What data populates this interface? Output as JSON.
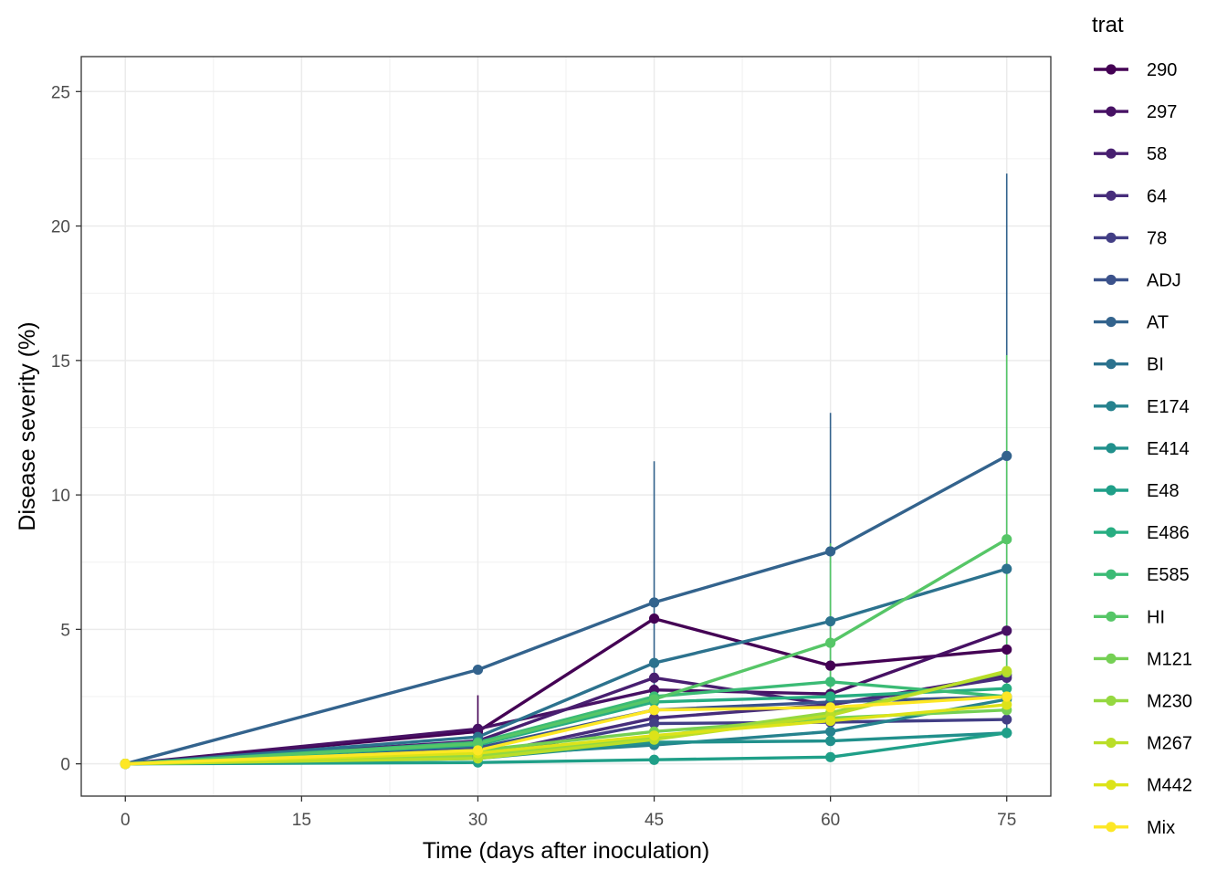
{
  "chart_data": {
    "type": "line",
    "title": "",
    "xlabel": "Time (days after inoculation)",
    "ylabel": "Disease severity (%)",
    "xlim": [
      -3.75,
      78.75
    ],
    "ylim": [
      -1.2,
      26.3
    ],
    "x_ticks": [
      0,
      15,
      30,
      45,
      60,
      75
    ],
    "y_ticks": [
      0,
      5,
      10,
      15,
      20,
      25
    ],
    "x": [
      0,
      30,
      45,
      60,
      75
    ],
    "grid": true,
    "legend_position": "right",
    "legend_title": "trat",
    "series": [
      {
        "name": "290",
        "color": "#440154",
        "values": [
          0,
          1.2,
          5.4,
          3.65,
          4.25
        ],
        "error_high": [
          null,
          2.55,
          null,
          null,
          null
        ]
      },
      {
        "name": "297",
        "color": "#471164",
        "values": [
          0,
          1.3,
          2.75,
          2.6,
          4.95
        ],
        "error_high": [
          null,
          null,
          null,
          null,
          null
        ]
      },
      {
        "name": "58",
        "color": "#481F70",
        "values": [
          0,
          0.85,
          3.2,
          2.2,
          3.3
        ],
        "error_high": [
          null,
          null,
          null,
          null,
          null
        ]
      },
      {
        "name": "64",
        "color": "#472D7B",
        "values": [
          0,
          0.3,
          1.7,
          2.2,
          3.2
        ],
        "error_high": [
          null,
          null,
          null,
          null,
          null
        ]
      },
      {
        "name": "78",
        "color": "#423E85",
        "values": [
          0,
          0.25,
          1.5,
          1.55,
          1.65
        ],
        "error_high": [
          null,
          null,
          null,
          null,
          null
        ]
      },
      {
        "name": "ADJ",
        "color": "#3B528B",
        "values": [
          0,
          0.6,
          2.0,
          2.3,
          2.5
        ],
        "error_high": [
          null,
          null,
          null,
          null,
          null
        ]
      },
      {
        "name": "AT",
        "color": "#33638D",
        "values": [
          0,
          3.5,
          6.0,
          7.9,
          11.45
        ],
        "error_high": [
          null,
          null,
          11.25,
          13.05,
          21.95
        ]
      },
      {
        "name": "BI",
        "color": "#2C728E",
        "values": [
          0,
          1.0,
          3.75,
          5.3,
          7.25
        ],
        "error_high": [
          null,
          null,
          null,
          null,
          null
        ]
      },
      {
        "name": "E174",
        "color": "#26828E",
        "values": [
          0,
          0.3,
          0.7,
          1.2,
          2.4
        ],
        "error_high": [
          null,
          null,
          null,
          null,
          null
        ]
      },
      {
        "name": "E414",
        "color": "#21908C",
        "values": [
          0,
          0.2,
          0.8,
          0.85,
          1.15
        ],
        "error_high": [
          null,
          null,
          null,
          null,
          null
        ]
      },
      {
        "name": "E48",
        "color": "#1F9F88",
        "values": [
          0,
          0.05,
          0.15,
          0.25,
          1.15
        ],
        "error_high": [
          null,
          null,
          null,
          null,
          null
        ]
      },
      {
        "name": "E486",
        "color": "#27AD81",
        "values": [
          0,
          0.7,
          2.3,
          2.5,
          2.8
        ],
        "error_high": [
          null,
          null,
          null,
          null,
          null
        ]
      },
      {
        "name": "E585",
        "color": "#3BBB75",
        "values": [
          0,
          0.8,
          2.5,
          3.05,
          2.5
        ],
        "error_high": [
          null,
          null,
          null,
          null,
          null
        ]
      },
      {
        "name": "HI",
        "color": "#56C667",
        "values": [
          0,
          0.75,
          2.4,
          4.5,
          8.35
        ],
        "error_high": [
          null,
          null,
          null,
          8.2,
          15.2
        ]
      },
      {
        "name": "M121",
        "color": "#75D054",
        "values": [
          0,
          0.5,
          1.2,
          1.7,
          2.0
        ],
        "error_high": [
          null,
          null,
          null,
          null,
          null
        ]
      },
      {
        "name": "M230",
        "color": "#95D840",
        "values": [
          0,
          0.3,
          1.0,
          1.9,
          3.4
        ],
        "error_high": [
          null,
          null,
          null,
          null,
          null
        ]
      },
      {
        "name": "M267",
        "color": "#BADE28",
        "values": [
          0,
          0.2,
          0.9,
          1.8,
          3.45
        ],
        "error_high": [
          null,
          null,
          null,
          null,
          null
        ]
      },
      {
        "name": "M442",
        "color": "#DCE319",
        "values": [
          0,
          0.4,
          1.05,
          1.6,
          2.2
        ],
        "error_high": [
          null,
          null,
          null,
          null,
          null
        ]
      },
      {
        "name": "Mix",
        "color": "#FDE725",
        "values": [
          0,
          0.5,
          2.0,
          2.1,
          2.5
        ],
        "error_high": [
          null,
          null,
          null,
          null,
          null
        ]
      }
    ]
  }
}
